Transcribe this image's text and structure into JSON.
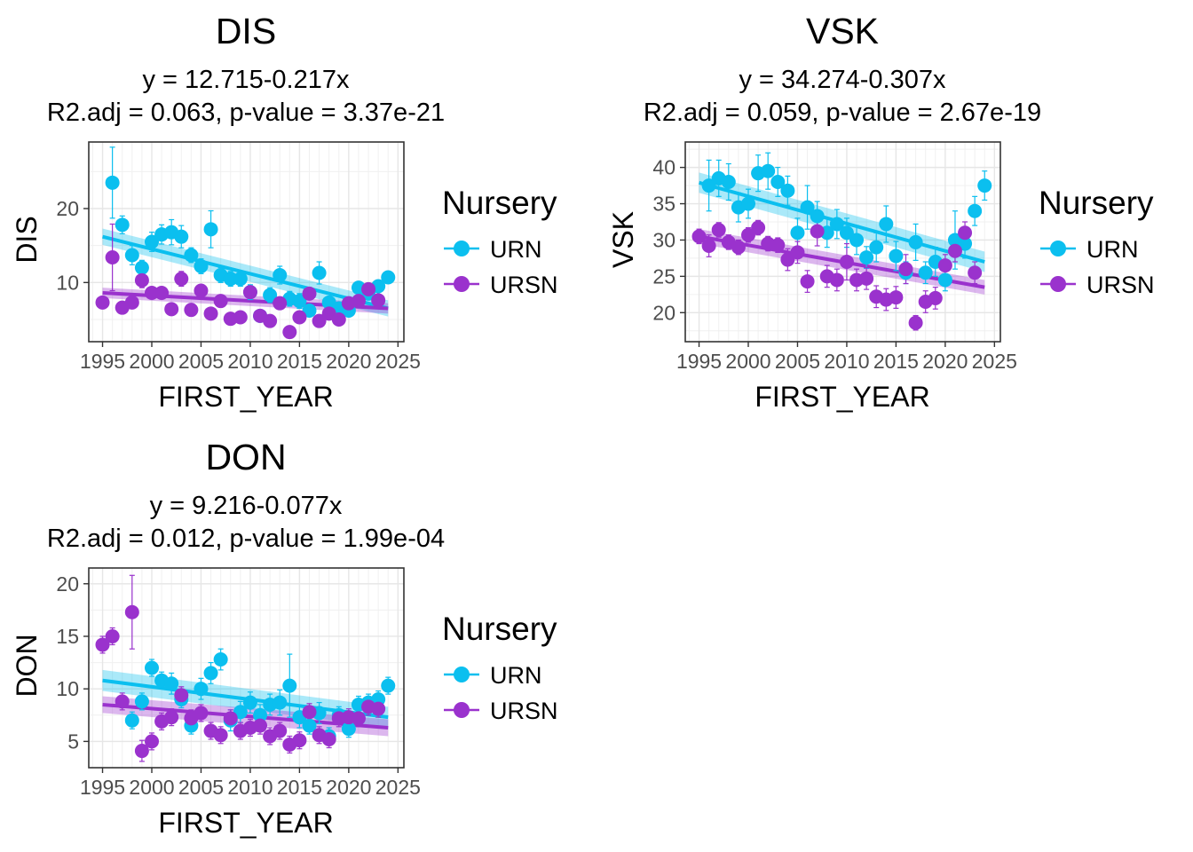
{
  "chart_data": [
    {
      "type": "scatter",
      "title": "DIS",
      "subtitle_line1": "y = 12.715-0.217x",
      "subtitle_line2": "R2.adj = 0.063, p-value = 3.37e-21",
      "xlabel": "FIRST_YEAR",
      "ylabel": "DIS",
      "xlim": [
        1993.6,
        2025.6
      ],
      "ylim": [
        2.0,
        29.0
      ],
      "xticks": [
        1995,
        2000,
        2005,
        2010,
        2015,
        2020,
        2025
      ],
      "yticks": [
        10,
        20
      ],
      "legend": {
        "title": "Nursery",
        "position": "right"
      },
      "series": [
        {
          "name": "URN",
          "color": "#0bbfef",
          "x": [
            1996,
            1997,
            1998,
            1999,
            2000,
            2001,
            2002,
            2003,
            2004,
            2005,
            2006,
            2007,
            2008,
            2009,
            2010,
            2011,
            2012,
            2013,
            2014,
            2015,
            2016,
            2017,
            2018,
            2019,
            2020,
            2021,
            2022,
            2023,
            2024
          ],
          "y": [
            23.5,
            17.8,
            13.7,
            12.0,
            15.5,
            16.5,
            16.8,
            16.2,
            13.7,
            12.2,
            17.2,
            11.0,
            10.5,
            10.5,
            8.7,
            5.5,
            8.3,
            11.0,
            7.8,
            7.5,
            6.2,
            11.3,
            7.3,
            6.5,
            6.2,
            9.3,
            8.5,
            9.5,
            10.7
          ],
          "err": [
            4.8,
            1.2,
            1.3,
            1.0,
            1.3,
            1.3,
            1.7,
            1.5,
            1.0,
            1.0,
            2.5,
            1.0,
            1.0,
            1.0,
            1.0,
            0.8,
            1.0,
            1.2,
            1.0,
            1.0,
            0.8,
            1.5,
            0.8,
            0.8,
            0.8,
            0.8,
            0.8,
            0.8,
            0.8
          ],
          "fit": {
            "x": [
              1995,
              2024
            ],
            "y": [
              16.2,
              6.5
            ],
            "band": 1.1
          }
        },
        {
          "name": "URSN",
          "color": "#9a32cd",
          "x": [
            1995,
            1996,
            1997,
            1998,
            1999,
            2000,
            2001,
            2002,
            2003,
            2004,
            2005,
            2006,
            2007,
            2008,
            2009,
            2010,
            2011,
            2012,
            2013,
            2014,
            2015,
            2016,
            2017,
            2018,
            2019,
            2020,
            2021,
            2022,
            2023
          ],
          "y": [
            7.3,
            13.4,
            6.6,
            7.3,
            10.3,
            8.6,
            8.6,
            6.4,
            10.5,
            6.3,
            8.9,
            5.8,
            7.5,
            5.1,
            5.3,
            8.7,
            5.5,
            4.8,
            7.2,
            3.3,
            5.3,
            8.5,
            4.8,
            5.8,
            5.0,
            7.2,
            7.5,
            9.1,
            7.6
          ],
          "err": [
            0.8,
            4.5,
            0.8,
            0.8,
            1.0,
            0.8,
            0.8,
            0.8,
            1.0,
            0.8,
            0.8,
            0.8,
            0.8,
            0.8,
            0.8,
            0.8,
            0.8,
            0.8,
            0.8,
            0.8,
            0.8,
            0.8,
            0.8,
            0.8,
            0.8,
            0.8,
            0.8,
            0.8,
            0.8
          ],
          "fit": {
            "x": [
              1995,
              2024
            ],
            "y": [
              8.6,
              6.5
            ],
            "band": 0.7
          }
        }
      ]
    },
    {
      "type": "scatter",
      "title": "VSK",
      "subtitle_line1": "y = 34.274-0.307x",
      "subtitle_line2": "R2.adj = 0.059, p-value = 2.67e-19",
      "xlabel": "FIRST_YEAR",
      "ylabel": "VSK",
      "xlim": [
        1993.6,
        2025.6
      ],
      "ylim": [
        16.0,
        43.5
      ],
      "xticks": [
        1995,
        2000,
        2005,
        2010,
        2015,
        2020,
        2025
      ],
      "yticks": [
        20,
        25,
        30,
        35,
        40
      ],
      "legend": {
        "title": "Nursery",
        "position": "right"
      },
      "series": [
        {
          "name": "URN",
          "color": "#0bbfef",
          "x": [
            1996,
            1997,
            1998,
            1999,
            2000,
            2001,
            2002,
            2003,
            2004,
            2005,
            2006,
            2007,
            2008,
            2009,
            2010,
            2011,
            2012,
            2013,
            2014,
            2015,
            2016,
            2017,
            2018,
            2019,
            2020,
            2021,
            2022,
            2023,
            2024
          ],
          "y": [
            37.5,
            38.5,
            38.0,
            34.5,
            35.0,
            39.2,
            39.5,
            38.0,
            36.8,
            31.0,
            34.5,
            33.3,
            31.0,
            32.2,
            31.0,
            30.0,
            27.6,
            29.0,
            32.2,
            27.8,
            25.5,
            29.7,
            25.5,
            27.0,
            24.5,
            30.0,
            29.5,
            34.0,
            37.5
          ],
          "err": [
            3.5,
            2.5,
            2.5,
            2.0,
            2.0,
            2.5,
            2.5,
            2.0,
            2.0,
            2.0,
            3.0,
            2.0,
            2.0,
            2.0,
            2.0,
            2.0,
            1.5,
            2.0,
            2.5,
            2.0,
            1.5,
            2.5,
            1.5,
            2.0,
            1.5,
            4.0,
            2.0,
            2.0,
            2.0
          ],
          "fit": {
            "x": [
              1995,
              2024
            ],
            "y": [
              37.9,
              27.0
            ],
            "band": 1.4
          }
        },
        {
          "name": "URSN",
          "color": "#9a32cd",
          "x": [
            1995,
            1996,
            1997,
            1998,
            1999,
            2000,
            2001,
            2002,
            2003,
            2004,
            2005,
            2006,
            2007,
            2008,
            2009,
            2010,
            2011,
            2012,
            2013,
            2014,
            2015,
            2016,
            2017,
            2018,
            2019,
            2020,
            2021,
            2022,
            2023
          ],
          "y": [
            30.5,
            29.2,
            31.4,
            29.7,
            29.0,
            30.7,
            31.7,
            29.5,
            29.3,
            27.3,
            28.3,
            24.3,
            31.2,
            25.0,
            24.5,
            27.0,
            24.5,
            24.7,
            22.2,
            21.8,
            22.1,
            26.0,
            18.6,
            21.5,
            22.0,
            26.5,
            28.5,
            31.0,
            25.5
          ],
          "err": [
            1.0,
            1.5,
            1.0,
            1.0,
            1.0,
            1.0,
            1.0,
            1.0,
            1.0,
            1.5,
            1.5,
            1.5,
            2.0,
            1.5,
            1.5,
            2.5,
            1.5,
            1.5,
            1.5,
            1.5,
            1.5,
            2.0,
            1.0,
            1.5,
            1.5,
            1.5,
            1.5,
            1.5,
            1.5
          ],
          "fit": {
            "x": [
              1995,
              2024
            ],
            "y": [
              30.5,
              23.5
            ],
            "band": 1.0
          }
        }
      ]
    },
    {
      "type": "scatter",
      "title": "DON",
      "subtitle_line1": "y = 9.216-0.077x",
      "subtitle_line2": "R2.adj = 0.012, p-value = 1.99e-04",
      "xlabel": "FIRST_YEAR",
      "ylabel": "DON",
      "xlim": [
        1993.6,
        2025.6
      ],
      "ylim": [
        2.5,
        21.5
      ],
      "xticks": [
        1995,
        2000,
        2005,
        2010,
        2015,
        2020,
        2025
      ],
      "yticks": [
        5,
        10,
        15,
        20
      ],
      "legend": {
        "title": "Nursery",
        "position": "right"
      },
      "series": [
        {
          "name": "URN",
          "color": "#0bbfef",
          "x": [
            1998,
            1999,
            2000,
            2001,
            2002,
            2003,
            2004,
            2005,
            2006,
            2007,
            2008,
            2009,
            2010,
            2011,
            2012,
            2013,
            2014,
            2015,
            2016,
            2017,
            2018,
            2019,
            2020,
            2021,
            2022,
            2023,
            2024
          ],
          "y": [
            7.0,
            8.8,
            12.0,
            10.8,
            10.5,
            9.0,
            6.5,
            10.0,
            11.5,
            12.8,
            7.0,
            7.8,
            8.7,
            7.5,
            8.5,
            8.7,
            10.3,
            7.3,
            6.5,
            7.7,
            5.5,
            7.5,
            6.2,
            8.5,
            8.7,
            9.0,
            10.3
          ],
          "err": [
            0.8,
            0.8,
            0.8,
            0.8,
            1.0,
            0.8,
            0.8,
            1.0,
            1.0,
            1.0,
            1.0,
            1.0,
            1.0,
            1.0,
            1.0,
            1.2,
            3.0,
            1.0,
            0.8,
            1.0,
            0.8,
            0.8,
            0.8,
            0.8,
            0.8,
            0.8,
            0.8
          ],
          "fit": {
            "x": [
              1995,
              2024
            ],
            "y": [
              10.8,
              7.3
            ],
            "band": 1.0
          }
        },
        {
          "name": "URSN",
          "color": "#9a32cd",
          "x": [
            1995,
            1996,
            1997,
            1998,
            1999,
            2000,
            2001,
            2002,
            2003,
            2004,
            2005,
            2006,
            2007,
            2008,
            2009,
            2010,
            2011,
            2012,
            2013,
            2014,
            2015,
            2016,
            2017,
            2018,
            2019,
            2020,
            2021,
            2022,
            2023
          ],
          "y": [
            14.2,
            15.0,
            8.8,
            17.3,
            4.1,
            5.0,
            6.9,
            7.3,
            9.4,
            7.2,
            7.7,
            6.0,
            5.6,
            7.2,
            6.0,
            6.3,
            6.5,
            5.5,
            6.0,
            4.7,
            5.1,
            7.8,
            5.6,
            5.2,
            7.2,
            7.3,
            7.2,
            8.3,
            8.1
          ],
          "err": [
            0.8,
            0.8,
            0.8,
            3.5,
            1.0,
            0.8,
            0.8,
            0.8,
            0.8,
            0.8,
            0.8,
            0.8,
            0.8,
            0.8,
            0.8,
            0.8,
            0.8,
            0.8,
            0.8,
            0.8,
            0.8,
            0.8,
            0.8,
            0.8,
            0.8,
            0.8,
            0.8,
            0.8,
            0.8
          ],
          "fit": {
            "x": [
              1995,
              2024
            ],
            "y": [
              8.5,
              6.3
            ],
            "band": 0.8
          }
        }
      ]
    }
  ]
}
